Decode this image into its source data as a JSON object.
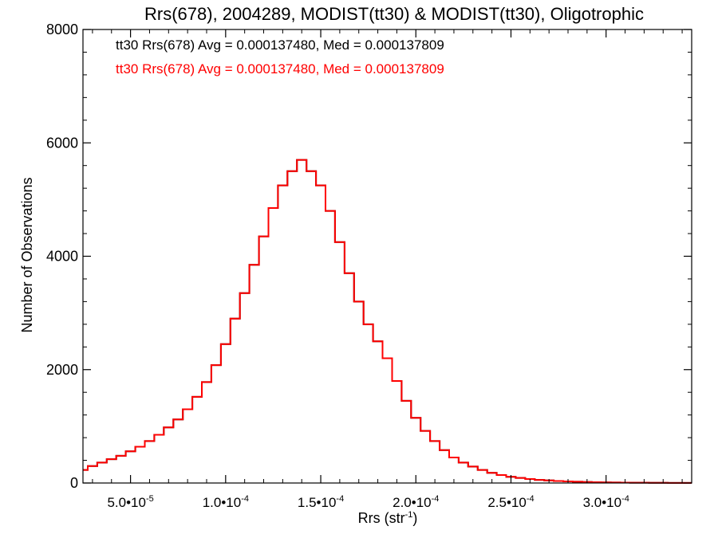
{
  "chart_data": {
    "type": "histogram",
    "title": "Rrs(678), 2004289, MODIST(tt30) & MODIST(tt30), Oligotrophic",
    "xlabel": "Rrs (str",
    "xlabel_sup": "-1",
    "xlabel_close": ")",
    "ylabel": "Number of Observations",
    "xlim": [
      2.5e-05,
      0.000345
    ],
    "ylim": [
      0,
      8000
    ],
    "x_ticks": [
      {
        "value": 5e-05,
        "mantissa": "5.0",
        "exponent": "-5"
      },
      {
        "value": 0.0001,
        "mantissa": "1.0",
        "exponent": "-4"
      },
      {
        "value": 0.00015,
        "mantissa": "1.5",
        "exponent": "-4"
      },
      {
        "value": 0.0002,
        "mantissa": "2.0",
        "exponent": "-4"
      },
      {
        "value": 0.00025,
        "mantissa": "2.5",
        "exponent": "-4"
      },
      {
        "value": 0.0003,
        "mantissa": "3.0",
        "exponent": "-4"
      }
    ],
    "y_ticks": [
      0,
      2000,
      4000,
      6000,
      8000
    ],
    "annotations": [
      {
        "text": "tt30 Rrs(678) Avg = 0.000137480, Med = 0.000137809",
        "color": "#000000"
      },
      {
        "text": "tt30 Rrs(678) Avg = 0.000137480, Med = 0.000137809",
        "color": "#ff0000"
      }
    ],
    "series": [
      {
        "color": "#000000",
        "x": [
          2.5e-05,
          3e-05,
          3.5e-05,
          4e-05,
          4.5e-05,
          5e-05,
          5.5e-05,
          6e-05,
          6.5e-05,
          7e-05,
          7.5e-05,
          8e-05,
          8.5e-05,
          9e-05,
          9.5e-05,
          0.0001,
          0.000105,
          0.00011,
          0.000115,
          0.00012,
          0.000125,
          0.00013,
          0.000135,
          0.00014,
          0.000145,
          0.00015,
          0.000155,
          0.00016,
          0.000165,
          0.00017,
          0.000175,
          0.00018,
          0.000185,
          0.00019,
          0.000195,
          0.0002,
          0.000205,
          0.00021,
          0.000215,
          0.00022,
          0.000225,
          0.00023,
          0.000235,
          0.00024,
          0.000245,
          0.00025,
          0.000255,
          0.00026,
          0.000265,
          0.00027,
          0.000275,
          0.00028,
          0.000285,
          0.00029,
          0.000295,
          0.0003,
          0.000305,
          0.00031,
          0.000315,
          0.00032,
          0.000325,
          0.00033,
          0.000335,
          0.00034,
          0.000345
        ],
        "y": [
          230,
          300,
          360,
          420,
          480,
          560,
          640,
          740,
          850,
          980,
          1120,
          1300,
          1520,
          1780,
          2080,
          2450,
          2900,
          3350,
          3850,
          4350,
          4850,
          5250,
          5500,
          5700,
          5500,
          5250,
          4800,
          4250,
          3700,
          3200,
          2800,
          2500,
          2200,
          1800,
          1450,
          1150,
          920,
          740,
          580,
          450,
          360,
          290,
          230,
          180,
          140,
          110,
          90,
          70,
          55,
          45,
          35,
          28,
          22,
          18,
          14,
          11,
          9,
          7,
          6,
          5,
          4,
          3,
          2,
          2,
          1
        ]
      },
      {
        "color": "#ff0000",
        "x": [
          2.5e-05,
          3e-05,
          3.5e-05,
          4e-05,
          4.5e-05,
          5e-05,
          5.5e-05,
          6e-05,
          6.5e-05,
          7e-05,
          7.5e-05,
          8e-05,
          8.5e-05,
          9e-05,
          9.5e-05,
          0.0001,
          0.000105,
          0.00011,
          0.000115,
          0.00012,
          0.000125,
          0.00013,
          0.000135,
          0.00014,
          0.000145,
          0.00015,
          0.000155,
          0.00016,
          0.000165,
          0.00017,
          0.000175,
          0.00018,
          0.000185,
          0.00019,
          0.000195,
          0.0002,
          0.000205,
          0.00021,
          0.000215,
          0.00022,
          0.000225,
          0.00023,
          0.000235,
          0.00024,
          0.000245,
          0.00025,
          0.000255,
          0.00026,
          0.000265,
          0.00027,
          0.000275,
          0.00028,
          0.000285,
          0.00029,
          0.000295,
          0.0003,
          0.000305,
          0.00031,
          0.000315,
          0.00032,
          0.000325,
          0.00033,
          0.000335,
          0.00034,
          0.000345
        ],
        "y": [
          230,
          300,
          360,
          420,
          480,
          560,
          640,
          740,
          850,
          980,
          1120,
          1300,
          1520,
          1780,
          2080,
          2450,
          2900,
          3350,
          3850,
          4350,
          4850,
          5250,
          5500,
          5700,
          5500,
          5250,
          4800,
          4250,
          3700,
          3200,
          2800,
          2500,
          2200,
          1800,
          1450,
          1150,
          920,
          740,
          580,
          450,
          360,
          290,
          230,
          180,
          140,
          110,
          90,
          70,
          55,
          45,
          35,
          28,
          22,
          18,
          14,
          11,
          9,
          7,
          6,
          5,
          4,
          3,
          2,
          2,
          1
        ]
      }
    ]
  }
}
